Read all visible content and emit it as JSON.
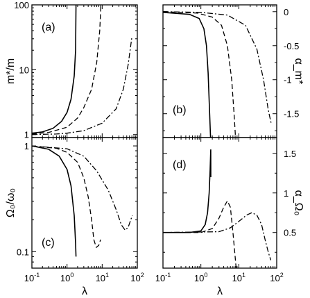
{
  "chart_data": [
    {
      "panel": "(a)",
      "type": "line",
      "xscale": "log",
      "yscale": "log",
      "xlim": [
        0.1,
        100
      ],
      "ylim": [
        0.9,
        100
      ],
      "ylabel": "m*/m",
      "xlabel": "",
      "yticks": [
        1,
        10,
        100
      ],
      "ytick_labels": [
        "1",
        "10",
        "100"
      ],
      "series": [
        {
          "style": "solid",
          "points": [
            [
              0.1,
              1.05
            ],
            [
              0.2,
              1.1
            ],
            [
              0.4,
              1.25
            ],
            [
              0.7,
              1.6
            ],
            [
              1.0,
              2.2
            ],
            [
              1.3,
              3.5
            ],
            [
              1.6,
              8
            ],
            [
              1.75,
              20
            ],
            [
              1.8,
              100
            ]
          ]
        },
        {
          "style": "dashed",
          "points": [
            [
              0.1,
              1.02
            ],
            [
              0.3,
              1.08
            ],
            [
              1.0,
              1.3
            ],
            [
              2.0,
              1.8
            ],
            [
              3.0,
              2.6
            ],
            [
              5.0,
              5
            ],
            [
              7.0,
              13
            ],
            [
              8.5,
              40
            ],
            [
              9.2,
              100
            ]
          ]
        },
        {
          "style": "dashdot",
          "points": [
            [
              0.1,
              1.0
            ],
            [
              0.5,
              1.02
            ],
            [
              1.0,
              1.05
            ],
            [
              3.0,
              1.15
            ],
            [
              10.0,
              1.5
            ],
            [
              25.0,
              2.5
            ],
            [
              40.0,
              5
            ],
            [
              55.0,
              12
            ],
            [
              70.0,
              32
            ]
          ]
        }
      ]
    },
    {
      "panel": "(b)",
      "type": "line",
      "xscale": "log",
      "yscale": "linear",
      "xlim": [
        0.1,
        100
      ],
      "ylim": [
        -1.85,
        0.1
      ],
      "ylabel": "α_m*",
      "xlabel": "",
      "yticks": [
        0,
        -0.5,
        -1,
        -1.5
      ],
      "ytick_labels": [
        "0",
        "-0.5",
        "-1",
        "-1.5"
      ],
      "series": [
        {
          "style": "solid",
          "points": [
            [
              0.1,
              -0.01
            ],
            [
              0.5,
              -0.04
            ],
            [
              0.9,
              -0.1
            ],
            [
              1.2,
              -0.25
            ],
            [
              1.4,
              -0.5
            ],
            [
              1.55,
              -0.9
            ],
            [
              1.7,
              -1.5
            ],
            [
              1.8,
              -1.85
            ]
          ]
        },
        {
          "style": "dashed",
          "points": [
            [
              0.1,
              -0.0
            ],
            [
              0.8,
              -0.02
            ],
            [
              2.0,
              -0.08
            ],
            [
              3.5,
              -0.2
            ],
            [
              5.0,
              -0.5
            ],
            [
              6.5,
              -1.0
            ],
            [
              7.5,
              -1.5
            ],
            [
              8.2,
              -1.85
            ]
          ]
        },
        {
          "style": "dashdot",
          "points": [
            [
              0.1,
              0.0
            ],
            [
              1.0,
              -0.01
            ],
            [
              5.0,
              -0.05
            ],
            [
              15.0,
              -0.2
            ],
            [
              30.0,
              -0.55
            ],
            [
              45.0,
              -1.0
            ],
            [
              60.0,
              -1.45
            ],
            [
              72.0,
              -1.65
            ]
          ]
        }
      ]
    },
    {
      "panel": "(c)",
      "type": "line",
      "xscale": "log",
      "yscale": "log",
      "xlim": [
        0.1,
        100
      ],
      "ylim": [
        0.07,
        1.2
      ],
      "ylabel": "Ω₀/ω₀",
      "xlabel": "λ",
      "yticks": [
        0.1,
        1
      ],
      "ytick_labels": [
        "0.1",
        "1"
      ],
      "xticks": [
        0.1,
        1,
        10,
        100
      ],
      "series": [
        {
          "style": "solid",
          "points": [
            [
              0.1,
              1.0
            ],
            [
              0.3,
              0.93
            ],
            [
              0.6,
              0.8
            ],
            [
              1.0,
              0.6
            ],
            [
              1.3,
              0.42
            ],
            [
              1.6,
              0.22
            ],
            [
              1.75,
              0.12
            ],
            [
              1.8,
              0.09
            ]
          ]
        },
        {
          "style": "dashed",
          "points": [
            [
              0.1,
              1.0
            ],
            [
              0.5,
              0.95
            ],
            [
              1.0,
              0.87
            ],
            [
              2.0,
              0.7
            ],
            [
              3.0,
              0.5
            ],
            [
              4.0,
              0.33
            ],
            [
              5.0,
              0.2
            ],
            [
              5.8,
              0.13
            ],
            [
              6.8,
              0.11
            ],
            [
              8.0,
              0.115
            ],
            [
              9.0,
              0.13
            ]
          ]
        },
        {
          "style": "dashdot",
          "points": [
            [
              0.1,
              1.0
            ],
            [
              1.0,
              0.94
            ],
            [
              3.0,
              0.8
            ],
            [
              7.0,
              0.58
            ],
            [
              15.0,
              0.38
            ],
            [
              25.0,
              0.25
            ],
            [
              35.0,
              0.18
            ],
            [
              45.0,
              0.16
            ],
            [
              55.0,
              0.17
            ],
            [
              65.0,
              0.2
            ],
            [
              72.0,
              0.22
            ]
          ]
        }
      ]
    },
    {
      "panel": "(d)",
      "type": "line",
      "xscale": "log",
      "yscale": "linear",
      "xlim": [
        0.1,
        100
      ],
      "ylim": [
        0.05,
        1.7
      ],
      "ylabel": "α_Ω₀",
      "xlabel": "λ",
      "yticks": [
        0.5,
        1,
        1.5
      ],
      "ytick_labels": [
        "0.5",
        "1",
        "1.5"
      ],
      "xticks": [
        0.1,
        1,
        10,
        100
      ],
      "series": [
        {
          "style": "solid",
          "points": [
            [
              0.1,
              0.5
            ],
            [
              0.5,
              0.5
            ],
            [
              1.0,
              0.52
            ],
            [
              1.3,
              0.6
            ],
            [
              1.5,
              0.75
            ],
            [
              1.65,
              1.0
            ],
            [
              1.75,
              1.3
            ],
            [
              1.82,
              1.55
            ],
            [
              1.83,
              1.2
            ]
          ]
        },
        {
          "style": "dashed",
          "points": [
            [
              0.1,
              0.5
            ],
            [
              1.0,
              0.5
            ],
            [
              2.0,
              0.55
            ],
            [
              3.0,
              0.68
            ],
            [
              4.0,
              0.82
            ],
            [
              5.0,
              0.9
            ],
            [
              6.0,
              0.82
            ],
            [
              7.0,
              0.5
            ],
            [
              8.0,
              0.2
            ],
            [
              8.5,
              0.05
            ]
          ]
        },
        {
          "style": "dashdot",
          "points": [
            [
              0.1,
              0.5
            ],
            [
              3.0,
              0.51
            ],
            [
              6.0,
              0.56
            ],
            [
              10.0,
              0.64
            ],
            [
              16.0,
              0.72
            ],
            [
              22.0,
              0.75
            ],
            [
              30.0,
              0.72
            ],
            [
              40.0,
              0.6
            ],
            [
              50.0,
              0.4
            ],
            [
              60.0,
              0.25
            ],
            [
              70.0,
              0.15
            ]
          ]
        }
      ]
    }
  ]
}
